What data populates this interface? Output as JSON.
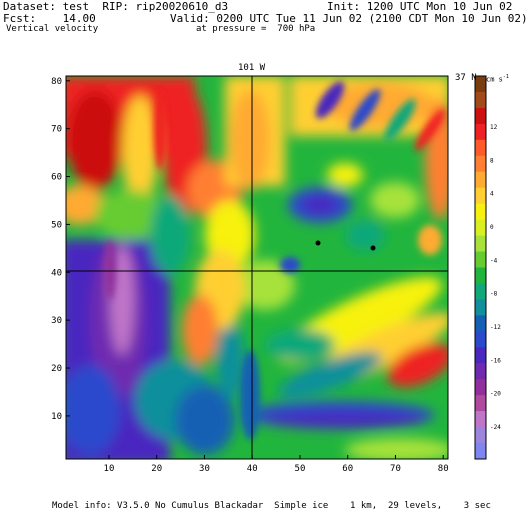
{
  "header": {
    "dataset": "Dataset: test  RIP: rip20020610_d3",
    "init": "Init: 1200 UTC Mon 10 Jun 02",
    "fcst": "Fcst:    14.00",
    "valid": "Valid: 0200 UTC Tue 11 Jun 02 (2100 CDT Mon 10 Jun 02)",
    "field": "Vertical velocity",
    "pressure": "at pressure =  700 hPa"
  },
  "map": {
    "lon_label": "101 W",
    "lat_label": "37 N",
    "x_ticks": [
      "10",
      "20",
      "30",
      "40",
      "50",
      "60",
      "70",
      "80"
    ],
    "y_ticks": [
      "10",
      "20",
      "30",
      "40",
      "50",
      "60",
      "70",
      "80"
    ],
    "grid_x_range": [
      1,
      81
    ],
    "grid_y_range": [
      1,
      81
    ],
    "crosshair_x": 40,
    "crosshair_y": 41
  },
  "colorbar": {
    "units": "cm s",
    "units_exp": "-1",
    "labels": [
      "12",
      "8",
      "4",
      "0",
      "-4",
      "-8",
      "-12",
      "-16",
      "-20",
      "-24"
    ],
    "colors": [
      "#7a3d10",
      "#a34a1b",
      "#cc1111",
      "#ee2222",
      "#ff5a2a",
      "#ff7f33",
      "#ffaa33",
      "#ffcf33",
      "#f7f10f",
      "#d9ef22",
      "#a6e23a",
      "#66cc33",
      "#22b53d",
      "#11a87a",
      "#11909b",
      "#1460b4",
      "#2c48cc",
      "#4a28bf",
      "#6f2ab0",
      "#91309c",
      "#b04a9f",
      "#c076c8",
      "#9a86dc",
      "#7f86f0"
    ]
  },
  "footer": {
    "model_info": "Model info: V3.5.0 No Cumulus Blackadar  Simple ice    1 km,  29 levels,    3 sec"
  }
}
